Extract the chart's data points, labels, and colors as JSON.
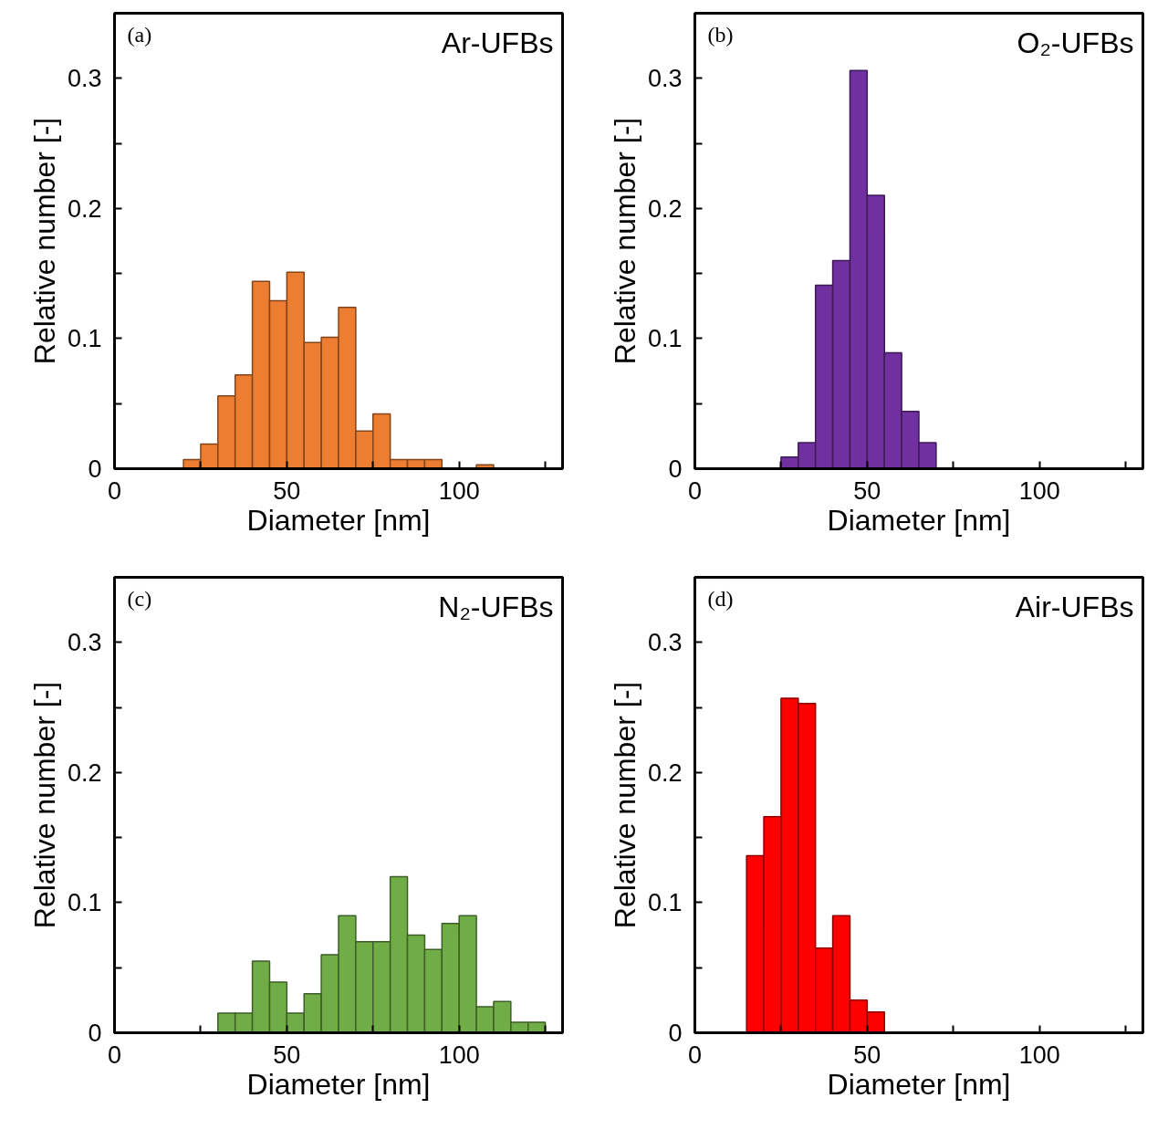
{
  "chart_data": [
    {
      "type": "histogram",
      "title": "Ar-UFBs",
      "annotations": [
        "(a)"
      ],
      "xlabel": "Diameter [nm]",
      "ylabel": "Relative number [-]",
      "color": "#ed7d31",
      "bins": [
        20,
        25,
        30,
        35,
        40,
        45,
        50,
        55,
        60,
        65,
        70,
        75,
        80,
        85,
        90,
        95,
        100,
        105,
        110
      ],
      "values": [
        0.007,
        0.019,
        0.056,
        0.072,
        0.144,
        0.129,
        0.151,
        0.097,
        0.101,
        0.124,
        0.029,
        0.042,
        0.007,
        0.007,
        0.007,
        0,
        0,
        0.003
      ],
      "xlim": [
        0,
        130
      ],
      "ylim": [
        0,
        0.35
      ],
      "xticks": [
        0,
        {
          "value": 25,
          "label": null
        },
        50,
        {
          "value": 75,
          "label": null
        },
        100,
        {
          "value": 125,
          "label": null
        }
      ],
      "yticks": [
        0,
        {
          "value": 0.05,
          "label": null
        },
        0.1,
        {
          "value": 0.15,
          "label": null
        },
        0.2,
        {
          "value": 0.25,
          "label": null
        },
        0.3
      ]
    },
    {
      "type": "histogram",
      "title": "O₂-UFBs",
      "annotations": [
        "(b)"
      ],
      "xlabel": "Diameter [nm]",
      "ylabel": "Relative number [-]",
      "color": "#7030a0",
      "bins": [
        25,
        30,
        35,
        40,
        45,
        50,
        55,
        60,
        65,
        70
      ],
      "values": [
        0.009,
        0.02,
        0.141,
        0.16,
        0.306,
        0.21,
        0.089,
        0.044,
        0.02
      ],
      "xlim": [
        0,
        130
      ],
      "ylim": [
        0,
        0.35
      ],
      "xticks": [
        0,
        {
          "value": 25,
          "label": null
        },
        50,
        {
          "value": 75,
          "label": null
        },
        100,
        {
          "value": 125,
          "label": null
        }
      ],
      "yticks": [
        0,
        {
          "value": 0.05,
          "label": null
        },
        0.1,
        {
          "value": 0.15,
          "label": null
        },
        0.2,
        {
          "value": 0.25,
          "label": null
        },
        0.3
      ]
    },
    {
      "type": "histogram",
      "title": "N₂-UFBs",
      "annotations": [
        "(c)"
      ],
      "xlabel": "Diameter [nm]",
      "ylabel": "Relative number [-]",
      "color": "#70ad47",
      "bins": [
        30,
        35,
        40,
        45,
        50,
        55,
        60,
        65,
        70,
        75,
        80,
        85,
        90,
        95,
        100,
        105,
        110,
        115,
        120,
        125
      ],
      "values": [
        0.015,
        0.015,
        0.055,
        0.039,
        0.015,
        0.03,
        0.06,
        0.09,
        0.07,
        0.07,
        0.12,
        0.075,
        0.064,
        0.084,
        0.09,
        0.02,
        0.024,
        0.008,
        0.008
      ],
      "xlim": [
        0,
        130
      ],
      "ylim": [
        0,
        0.35
      ],
      "xticks": [
        0,
        {
          "value": 25,
          "label": null
        },
        50,
        {
          "value": 75,
          "label": null
        },
        100,
        {
          "value": 125,
          "label": null
        }
      ],
      "yticks": [
        0,
        {
          "value": 0.05,
          "label": null
        },
        0.1,
        {
          "value": 0.15,
          "label": null
        },
        0.2,
        {
          "value": 0.25,
          "label": null
        },
        0.3
      ]
    },
    {
      "type": "histogram",
      "title": "Air-UFBs",
      "annotations": [
        "(d)"
      ],
      "xlabel": "Diameter [nm]",
      "ylabel": "Relative number [-]",
      "color": "#ff0000",
      "bins": [
        15,
        20,
        25,
        30,
        35,
        40,
        45,
        50,
        55
      ],
      "values": [
        0.136,
        0.166,
        0.257,
        0.253,
        0.065,
        0.09,
        0.025,
        0.016
      ],
      "xlim": [
        0,
        130
      ],
      "ylim": [
        0,
        0.35
      ],
      "xticks": [
        0,
        {
          "value": 25,
          "label": null
        },
        50,
        {
          "value": 75,
          "label": null
        },
        100,
        {
          "value": 125,
          "label": null
        }
      ],
      "yticks": [
        0,
        {
          "value": 0.05,
          "label": null
        },
        0.1,
        {
          "value": 0.15,
          "label": null
        },
        0.2,
        {
          "value": 0.25,
          "label": null
        },
        0.3
      ]
    }
  ]
}
